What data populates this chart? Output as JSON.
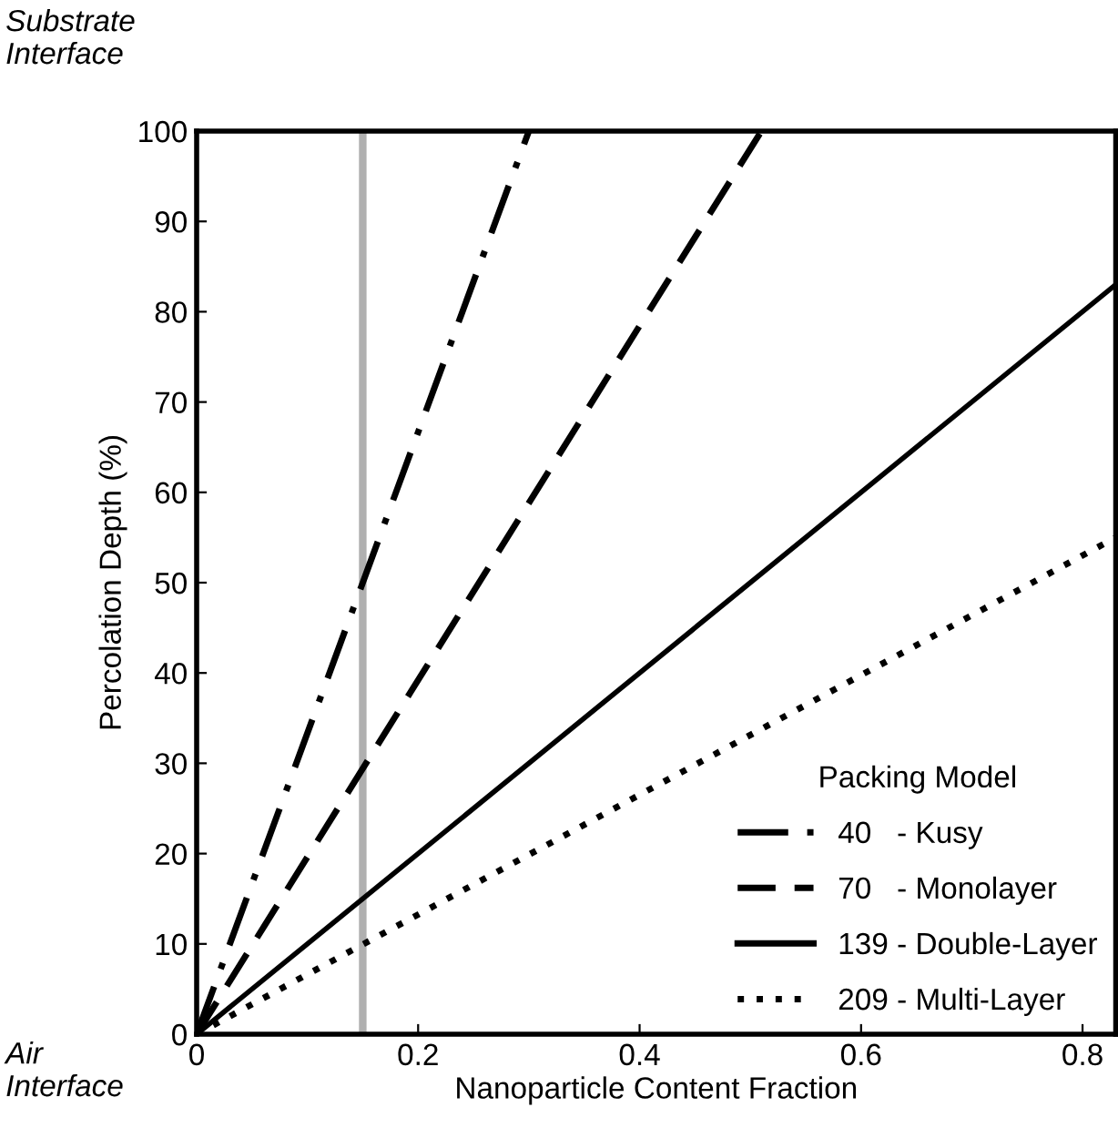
{
  "chart_data": {
    "type": "line",
    "xlabel": "Nanoparticle Content Fraction",
    "ylabel": "Percolation Depth (%)",
    "legend_title": "Packing Model",
    "legend": "bottom right",
    "grid": false,
    "xlim": [
      0,
      0.83
    ],
    "xticks": [
      0,
      0.2,
      0.4,
      0.6,
      0.8
    ],
    "ylim": [
      0,
      100
    ],
    "yticks": [
      0,
      10,
      20,
      30,
      40,
      50,
      60,
      70,
      80,
      90,
      100
    ],
    "series": [
      {
        "name": "40   - Kusy",
        "color": "#000000",
        "line_style": "dashdot",
        "x": [
          0,
          0.3
        ],
        "values": [
          0,
          100
        ]
      },
      {
        "name": "70   - Monolayer",
        "color": "#000000",
        "line_style": "dashed",
        "x": [
          0,
          0.51
        ],
        "values": [
          0,
          100
        ]
      },
      {
        "name": "139 - Double-Layer",
        "color": "#000000",
        "line_style": "solid",
        "x": [
          0,
          0.83
        ],
        "values": [
          0,
          83
        ]
      },
      {
        "name": "209 - Multi-Layer",
        "color": "#000000",
        "line_style": "dotted",
        "x": [
          0,
          0.83
        ],
        "values": [
          0,
          55
        ]
      }
    ],
    "ref_lines": [
      {
        "axis": "x",
        "value": 0.15,
        "color": "#b0b0b0"
      }
    ],
    "annotations": [
      "Substrate\nInterface",
      "Air\nInterface"
    ]
  }
}
